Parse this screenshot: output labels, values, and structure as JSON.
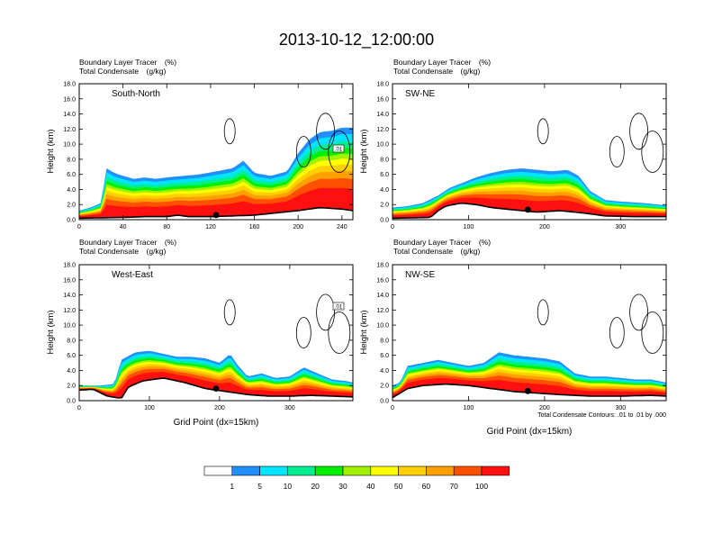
{
  "title": "2013-10-12_12:00:00",
  "panel_header": {
    "line1_label": "Boundary Layer Tracer",
    "line1_unit": "(%)",
    "line2_label": "Total Condensate",
    "line2_unit": "(g/kg)"
  },
  "ylabel": "Height (km)",
  "xlabel": "Grid Point (dx=15km)",
  "contour_note": "Total Condensate Contours: .01 to .01 by .000",
  "contour_tag": ".01",
  "colorbar": {
    "colors": [
      "#ffffff",
      "#2090ff",
      "#00e4ff",
      "#00f090",
      "#00f000",
      "#a0f000",
      "#ffff00",
      "#ffd000",
      "#ffa000",
      "#ff5000",
      "#ff1010"
    ],
    "labels": [
      "1",
      "5",
      "10",
      "20",
      "30",
      "40",
      "50",
      "60",
      "70",
      "100"
    ]
  },
  "chart_data": [
    {
      "type": "heatmap",
      "name": "South-North",
      "ylim": [
        0,
        18
      ],
      "yticks": [
        "0.0",
        "2.0",
        "4.0",
        "6.0",
        "8.0",
        "10.0",
        "12.0",
        "14.0",
        "16.0",
        "18.0"
      ],
      "xlim": [
        0,
        250
      ],
      "xticks": [
        0,
        40,
        80,
        120,
        160,
        200,
        240
      ],
      "xtick_labels": [
        "0",
        "40",
        "80",
        "120",
        "160",
        "200",
        "240"
      ],
      "marker_x": 125,
      "tracer_top_km": [
        [
          0,
          1.2
        ],
        [
          10,
          1.6
        ],
        [
          20,
          2.2
        ],
        [
          25,
          6.8
        ],
        [
          32,
          6.2
        ],
        [
          40,
          5.8
        ],
        [
          50,
          5.4
        ],
        [
          60,
          5.6
        ],
        [
          70,
          5.4
        ],
        [
          80,
          5.6
        ],
        [
          95,
          5.8
        ],
        [
          110,
          6.0
        ],
        [
          125,
          6.4
        ],
        [
          140,
          6.8
        ],
        [
          150,
          7.8
        ],
        [
          160,
          6.2
        ],
        [
          175,
          5.8
        ],
        [
          190,
          6.4
        ],
        [
          200,
          8.8
        ],
        [
          210,
          10.6
        ],
        [
          220,
          11.6
        ],
        [
          232,
          11.8
        ],
        [
          240,
          12.2
        ],
        [
          250,
          12.2
        ]
      ],
      "terrain_km": [
        [
          0,
          0.2
        ],
        [
          40,
          0.3
        ],
        [
          60,
          0.4
        ],
        [
          80,
          0.4
        ],
        [
          90,
          0.6
        ],
        [
          100,
          0.4
        ],
        [
          120,
          0.4
        ],
        [
          140,
          0.5
        ],
        [
          160,
          0.6
        ],
        [
          180,
          0.9
        ],
        [
          200,
          1.2
        ],
        [
          220,
          1.6
        ],
        [
          240,
          1.4
        ],
        [
          250,
          1.2
        ]
      ]
    },
    {
      "type": "heatmap",
      "name": "SW-NE",
      "ylim": [
        0,
        18
      ],
      "yticks": [
        "0.0",
        "2.0",
        "4.0",
        "6.0",
        "8.0",
        "10.0",
        "12.0",
        "14.0",
        "16.0",
        "18.0"
      ],
      "xlim": [
        0,
        360
      ],
      "xticks": [
        0,
        100,
        200,
        300
      ],
      "xtick_labels": [
        "0",
        "100",
        "200",
        "300"
      ],
      "marker_x": 178,
      "tracer_top_km": [
        [
          0,
          1.6
        ],
        [
          20,
          1.8
        ],
        [
          40,
          2.2
        ],
        [
          60,
          3.2
        ],
        [
          75,
          4.2
        ],
        [
          90,
          4.8
        ],
        [
          110,
          5.6
        ],
        [
          130,
          6.2
        ],
        [
          150,
          6.6
        ],
        [
          170,
          6.8
        ],
        [
          190,
          6.6
        ],
        [
          210,
          6.4
        ],
        [
          230,
          6.6
        ],
        [
          245,
          5.8
        ],
        [
          260,
          3.8
        ],
        [
          280,
          2.6
        ],
        [
          300,
          2.4
        ],
        [
          330,
          2.2
        ],
        [
          360,
          1.9
        ]
      ],
      "terrain_km": [
        [
          0,
          0.2
        ],
        [
          50,
          0.3
        ],
        [
          60,
          1.2
        ],
        [
          70,
          1.8
        ],
        [
          90,
          2.2
        ],
        [
          110,
          2.0
        ],
        [
          130,
          1.6
        ],
        [
          160,
          1.3
        ],
        [
          190,
          1.0
        ],
        [
          220,
          1.2
        ],
        [
          250,
          0.9
        ],
        [
          280,
          0.5
        ],
        [
          320,
          0.4
        ],
        [
          360,
          0.4
        ]
      ]
    },
    {
      "type": "heatmap",
      "name": "West-East",
      "ylim": [
        0,
        18
      ],
      "yticks": [
        "0.0",
        "2.0",
        "4.0",
        "6.0",
        "8.0",
        "10.0",
        "12.0",
        "14.0",
        "16.0",
        "18.0"
      ],
      "xlim": [
        0,
        390
      ],
      "xticks": [
        0,
        100,
        200,
        300
      ],
      "xtick_labels": [
        "0",
        "100",
        "200",
        "300"
      ],
      "marker_x": 195,
      "tracer_top_km": [
        [
          0,
          2.0
        ],
        [
          30,
          2.0
        ],
        [
          50,
          2.2
        ],
        [
          60,
          5.4
        ],
        [
          80,
          6.4
        ],
        [
          100,
          6.6
        ],
        [
          120,
          6.2
        ],
        [
          140,
          5.8
        ],
        [
          160,
          5.8
        ],
        [
          180,
          5.6
        ],
        [
          200,
          5.0
        ],
        [
          215,
          6.2
        ],
        [
          225,
          4.8
        ],
        [
          240,
          3.2
        ],
        [
          260,
          3.6
        ],
        [
          280,
          3.0
        ],
        [
          300,
          3.2
        ],
        [
          320,
          4.4
        ],
        [
          340,
          3.6
        ],
        [
          360,
          2.8
        ],
        [
          380,
          2.6
        ],
        [
          390,
          2.4
        ]
      ],
      "terrain_km": [
        [
          0,
          1.4
        ],
        [
          20,
          1.5
        ],
        [
          40,
          0.6
        ],
        [
          60,
          0.3
        ],
        [
          70,
          1.8
        ],
        [
          90,
          2.6
        ],
        [
          120,
          3.0
        ],
        [
          150,
          2.4
        ],
        [
          180,
          1.6
        ],
        [
          210,
          1.2
        ],
        [
          240,
          0.8
        ],
        [
          270,
          0.6
        ],
        [
          300,
          0.6
        ],
        [
          330,
          0.7
        ],
        [
          360,
          0.6
        ],
        [
          390,
          0.5
        ]
      ]
    },
    {
      "type": "heatmap",
      "name": "NW-SE",
      "ylim": [
        0,
        18
      ],
      "yticks": [
        "0.0",
        "2.0",
        "4.0",
        "6.0",
        "8.0",
        "10.0",
        "12.0",
        "14.0",
        "16.0",
        "18.0"
      ],
      "xlim": [
        0,
        360
      ],
      "xticks": [
        0,
        100,
        200,
        300
      ],
      "xtick_labels": [
        "0",
        "100",
        "200",
        "300"
      ],
      "marker_x": 178,
      "tracer_top_km": [
        [
          0,
          2.0
        ],
        [
          10,
          2.4
        ],
        [
          20,
          4.6
        ],
        [
          40,
          5.0
        ],
        [
          60,
          5.4
        ],
        [
          80,
          5.0
        ],
        [
          100,
          4.6
        ],
        [
          120,
          5.0
        ],
        [
          140,
          6.4
        ],
        [
          160,
          6.0
        ],
        [
          180,
          5.8
        ],
        [
          200,
          5.6
        ],
        [
          220,
          5.2
        ],
        [
          240,
          3.6
        ],
        [
          260,
          3.2
        ],
        [
          280,
          3.2
        ],
        [
          300,
          3.0
        ],
        [
          320,
          2.8
        ],
        [
          340,
          2.8
        ],
        [
          360,
          2.4
        ]
      ],
      "terrain_km": [
        [
          0,
          0.4
        ],
        [
          20,
          1.6
        ],
        [
          40,
          2.0
        ],
        [
          70,
          2.2
        ],
        [
          100,
          2.0
        ],
        [
          130,
          1.6
        ],
        [
          160,
          1.2
        ],
        [
          190,
          1.0
        ],
        [
          220,
          0.8
        ],
        [
          260,
          0.6
        ],
        [
          300,
          0.6
        ],
        [
          340,
          0.7
        ],
        [
          360,
          0.6
        ]
      ]
    }
  ]
}
